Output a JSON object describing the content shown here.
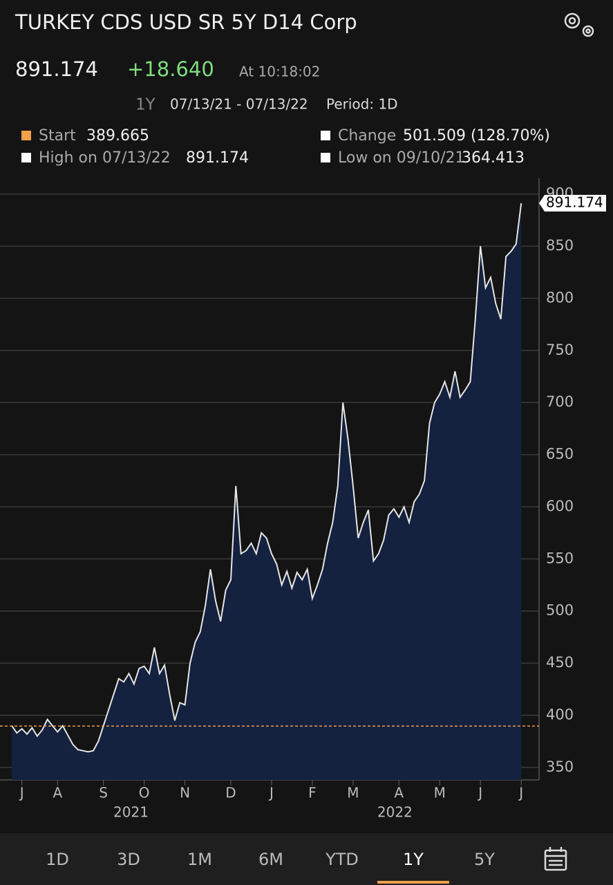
{
  "header": {
    "title": "TURKEY CDS USD SR 5Y D14 Corp",
    "price": "891.174",
    "change": "+18.640",
    "time": "At 10:18:02",
    "range": "1Y",
    "dates": "07/13/21 - 07/13/22",
    "period": "Period: 1D"
  },
  "stats": {
    "start": {
      "label": "Start",
      "value": 389.665
    },
    "change": {
      "label": "Change",
      "value": "501.509 (128.70%)"
    },
    "high": {
      "label": "High on 07/13/22",
      "value": "891.174"
    },
    "low": {
      "label": "Low on 09/10/21",
      "value": "364.413"
    }
  },
  "chart_data": {
    "type": "area",
    "line_color": "#e6e6e6",
    "fill_color": "#14213f",
    "ref_color": "#f0a04b",
    "grid": true,
    "values": [
      390,
      383,
      387,
      382,
      388,
      380,
      386,
      396,
      390,
      384,
      390,
      381,
      372,
      367,
      366,
      365,
      366,
      375,
      390,
      405,
      420,
      435,
      432,
      440,
      430,
      445,
      447,
      440,
      465,
      440,
      448,
      420,
      395,
      412,
      410,
      450,
      470,
      480,
      505,
      540,
      510,
      490,
      520,
      530,
      620,
      555,
      558,
      565,
      555,
      575,
      570,
      555,
      545,
      525,
      538,
      522,
      537,
      530,
      540,
      512,
      525,
      540,
      565,
      585,
      620,
      700,
      665,
      620,
      570,
      585,
      597,
      548,
      555,
      568,
      592,
      598,
      590,
      600,
      585,
      605,
      612,
      625,
      680,
      700,
      708,
      720,
      705,
      730,
      705,
      712,
      720,
      780,
      850,
      810,
      820,
      795,
      780,
      840,
      845,
      852,
      891.174
    ],
    "ylim": [
      338,
      915
    ],
    "yticks": [
      350,
      400,
      450,
      500,
      550,
      600,
      650,
      700,
      750,
      800,
      850,
      900
    ],
    "xlim": [
      -2.3,
      103.5
    ],
    "xticks": [
      {
        "value": 2,
        "label": "J"
      },
      {
        "value": 9,
        "label": "A"
      },
      {
        "value": 18,
        "label": "S"
      },
      {
        "value": 26,
        "label": "O"
      },
      {
        "value": 34,
        "label": "N"
      },
      {
        "value": 43,
        "label": "D"
      },
      {
        "value": 51,
        "label": "J"
      },
      {
        "value": 59,
        "label": "F"
      },
      {
        "value": 67,
        "label": "M"
      },
      {
        "value": 76,
        "label": "A"
      },
      {
        "value": 84,
        "label": "M"
      },
      {
        "value": 92,
        "label": "J"
      },
      {
        "value": 100,
        "label": "J"
      }
    ],
    "year_labels": [
      {
        "value": 23.4,
        "label": "2021"
      },
      {
        "value": 75.2,
        "label": "2022"
      }
    ]
  },
  "tabs": [
    "1D",
    "3D",
    "1M",
    "6M",
    "YTD",
    "1Y",
    "5Y"
  ],
  "active_tab": 5
}
